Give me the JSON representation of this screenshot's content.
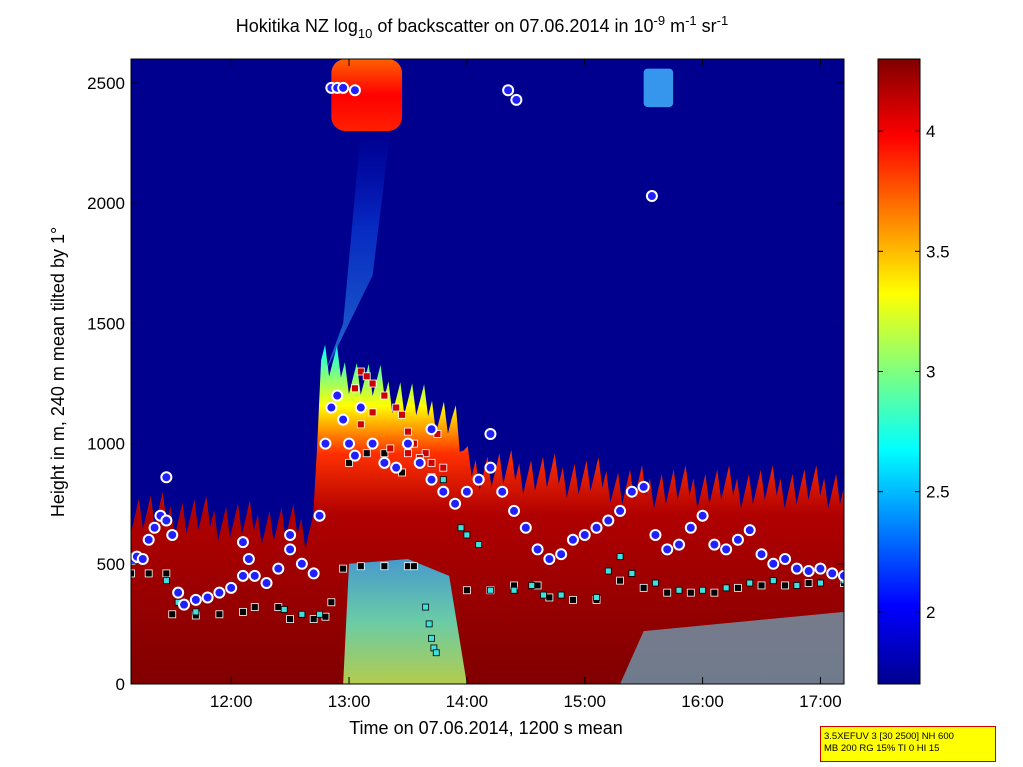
{
  "title": {
    "prefix": "Hokitika NZ log",
    "sub": "10",
    "middle": " of backscatter on 07.06.2014 in 10",
    "sup1": "-9",
    "unit_m": " m",
    "sup2": "-1",
    "unit_sr": " sr",
    "sup3": "-1"
  },
  "info_box": {
    "line1": "3.5XEFUV 3 [30 2500] NH 600",
    "line2": "MB 200 RG 15% TI 0 HI 15"
  },
  "colors": {
    "background": "#00008f",
    "colormap": [
      "#00008f",
      "#0000ff",
      "#00ffff",
      "#ffff00",
      "#ff0000",
      "#800000"
    ],
    "cloud_base_fill": "#2020ff",
    "cloud_base_ring": "#ffffff",
    "mlh_marker": "#000000",
    "aerosol_marker": "#40e0e0",
    "residual_marker": "#cc0000"
  },
  "chart_data": {
    "type": "heatmap",
    "xlabel": "Time on 07.06.2014, 1200 s mean",
    "ylabel": "Height in m, 240 m mean tilted by 1°",
    "xlim": [
      11.15,
      17.2
    ],
    "ylim": [
      0,
      2600
    ],
    "x_ticks": [
      12,
      13,
      14,
      15,
      16,
      17
    ],
    "x_tick_labels": [
      "12:00",
      "13:00",
      "14:00",
      "15:00",
      "16:00",
      "17:00"
    ],
    "y_ticks": [
      0,
      500,
      1000,
      1500,
      2000,
      2500
    ],
    "y_tick_labels": [
      "0",
      "500",
      "1000",
      "1500",
      "2000",
      "2500"
    ],
    "colorbar": {
      "range": [
        1.7,
        4.3
      ],
      "ticks": [
        2,
        2.5,
        3,
        3.5,
        4
      ],
      "tick_labels": [
        "2",
        "2.5",
        "3",
        "3.5",
        "4"
      ]
    },
    "features": [
      {
        "name": "boundary layer",
        "t": [
          11.15,
          12.7,
          12.75,
          13.9,
          14.0,
          15.2,
          15.3,
          17.2
        ],
        "top": [
          720,
          650,
          1350,
          1100,
          900,
          850,
          820,
          820
        ],
        "value": 4.2
      },
      {
        "name": "high cloud",
        "t": [
          12.85,
          13.45
        ],
        "base": 2300,
        "top": 2600,
        "value": 4.0
      },
      {
        "name": "cirrus patch",
        "t": [
          15.5,
          15.75
        ],
        "base": 2400,
        "top": 2560,
        "value": 2.6
      }
    ],
    "series": [
      {
        "name": "cloud base",
        "points": [
          [
            11.17,
            520
          ],
          [
            11.2,
            530
          ],
          [
            11.25,
            520
          ],
          [
            11.3,
            600
          ],
          [
            11.35,
            650
          ],
          [
            11.4,
            700
          ],
          [
            11.45,
            680
          ],
          [
            11.5,
            620
          ],
          [
            11.55,
            380
          ],
          [
            11.6,
            330
          ],
          [
            11.7,
            350
          ],
          [
            11.8,
            360
          ],
          [
            11.9,
            380
          ],
          [
            12.0,
            400
          ],
          [
            12.1,
            450
          ],
          [
            12.15,
            520
          ],
          [
            12.2,
            450
          ],
          [
            12.3,
            420
          ],
          [
            12.4,
            480
          ],
          [
            12.5,
            560
          ],
          [
            12.6,
            500
          ],
          [
            12.7,
            460
          ],
          [
            12.75,
            700
          ],
          [
            12.8,
            1000
          ],
          [
            12.85,
            1150
          ],
          [
            12.9,
            1200
          ],
          [
            12.95,
            1100
          ],
          [
            13.0,
            1000
          ],
          [
            13.05,
            950
          ],
          [
            13.1,
            1150
          ],
          [
            13.2,
            1000
          ],
          [
            13.3,
            920
          ],
          [
            13.4,
            900
          ],
          [
            13.5,
            1000
          ],
          [
            13.6,
            920
          ],
          [
            13.7,
            850
          ],
          [
            13.8,
            800
          ],
          [
            13.9,
            750
          ],
          [
            14.0,
            800
          ],
          [
            14.1,
            850
          ],
          [
            14.2,
            900
          ],
          [
            14.3,
            800
          ],
          [
            14.4,
            720
          ],
          [
            14.5,
            650
          ],
          [
            14.6,
            560
          ],
          [
            14.7,
            520
          ],
          [
            14.8,
            540
          ],
          [
            14.9,
            600
          ],
          [
            15.0,
            620
          ],
          [
            15.1,
            650
          ],
          [
            15.2,
            680
          ],
          [
            15.3,
            720
          ],
          [
            15.4,
            800
          ],
          [
            15.5,
            820
          ],
          [
            15.6,
            620
          ],
          [
            15.7,
            560
          ],
          [
            15.8,
            580
          ],
          [
            15.9,
            650
          ],
          [
            16.0,
            700
          ],
          [
            16.1,
            580
          ],
          [
            16.2,
            560
          ],
          [
            16.3,
            600
          ],
          [
            16.4,
            640
          ],
          [
            16.5,
            540
          ],
          [
            16.6,
            500
          ],
          [
            16.7,
            520
          ],
          [
            16.8,
            480
          ],
          [
            16.9,
            470
          ],
          [
            17.0,
            480
          ],
          [
            17.1,
            460
          ],
          [
            17.2,
            450
          ],
          [
            12.85,
            2480
          ],
          [
            12.9,
            2480
          ],
          [
            12.95,
            2480
          ],
          [
            13.05,
            2470
          ],
          [
            14.35,
            2470
          ],
          [
            14.42,
            2430
          ],
          [
            15.57,
            2030
          ],
          [
            14.2,
            1040
          ],
          [
            13.7,
            1060
          ],
          [
            11.45,
            860
          ],
          [
            12.1,
            590
          ],
          [
            12.5,
            620
          ]
        ]
      },
      {
        "name": "mixing layer height",
        "points": [
          [
            11.15,
            460
          ],
          [
            11.3,
            460
          ],
          [
            11.45,
            460
          ],
          [
            11.5,
            290
          ],
          [
            11.7,
            285
          ],
          [
            11.9,
            290
          ],
          [
            12.1,
            300
          ],
          [
            12.2,
            320
          ],
          [
            12.4,
            320
          ],
          [
            12.5,
            270
          ],
          [
            12.7,
            270
          ],
          [
            12.8,
            280
          ],
          [
            12.85,
            340
          ],
          [
            12.95,
            480
          ],
          [
            13.1,
            490
          ],
          [
            13.3,
            490
          ],
          [
            13.5,
            490
          ],
          [
            13.55,
            490
          ],
          [
            14.0,
            390
          ],
          [
            14.2,
            390
          ],
          [
            14.4,
            410
          ],
          [
            14.6,
            410
          ],
          [
            14.7,
            360
          ],
          [
            14.9,
            350
          ],
          [
            15.1,
            350
          ],
          [
            15.3,
            430
          ],
          [
            15.5,
            400
          ],
          [
            15.7,
            380
          ],
          [
            15.9,
            380
          ],
          [
            16.1,
            380
          ],
          [
            16.3,
            400
          ],
          [
            16.5,
            410
          ],
          [
            16.7,
            410
          ],
          [
            16.9,
            420
          ],
          [
            17.2,
            420
          ],
          [
            13.0,
            920
          ],
          [
            13.15,
            960
          ],
          [
            13.3,
            960
          ],
          [
            13.45,
            880
          ]
        ]
      },
      {
        "name": "aerosol layer",
        "points": [
          [
            11.45,
            430
          ],
          [
            11.55,
            340
          ],
          [
            11.7,
            300
          ],
          [
            12.45,
            310
          ],
          [
            12.6,
            290
          ],
          [
            12.75,
            290
          ],
          [
            13.65,
            320
          ],
          [
            13.68,
            250
          ],
          [
            13.7,
            190
          ],
          [
            13.72,
            150
          ],
          [
            13.74,
            130
          ],
          [
            13.8,
            850
          ],
          [
            13.9,
            760
          ],
          [
            13.95,
            650
          ],
          [
            14.0,
            620
          ],
          [
            14.1,
            580
          ],
          [
            14.2,
            390
          ],
          [
            14.4,
            390
          ],
          [
            14.55,
            410
          ],
          [
            14.65,
            370
          ],
          [
            14.8,
            370
          ],
          [
            15.1,
            360
          ],
          [
            15.2,
            470
          ],
          [
            15.3,
            530
          ],
          [
            15.4,
            460
          ],
          [
            15.6,
            420
          ],
          [
            15.8,
            390
          ],
          [
            16.0,
            390
          ],
          [
            16.2,
            400
          ],
          [
            16.4,
            420
          ],
          [
            16.6,
            430
          ],
          [
            16.8,
            410
          ],
          [
            17.0,
            420
          ],
          [
            17.2,
            430
          ]
        ]
      },
      {
        "name": "residual layer",
        "points": [
          [
            13.05,
            1230
          ],
          [
            13.1,
            1300
          ],
          [
            13.15,
            1280
          ],
          [
            13.2,
            1250
          ],
          [
            13.3,
            1200
          ],
          [
            13.4,
            1150
          ],
          [
            13.45,
            1120
          ],
          [
            13.5,
            1050
          ],
          [
            13.55,
            1000
          ],
          [
            13.65,
            960
          ],
          [
            13.2,
            1000
          ],
          [
            13.35,
            980
          ],
          [
            13.5,
            960
          ],
          [
            13.6,
            940
          ],
          [
            13.7,
            920
          ],
          [
            13.8,
            900
          ],
          [
            13.7,
            860
          ],
          [
            13.75,
            1040
          ],
          [
            13.2,
            1130
          ],
          [
            13.1,
            1080
          ]
        ]
      }
    ]
  }
}
